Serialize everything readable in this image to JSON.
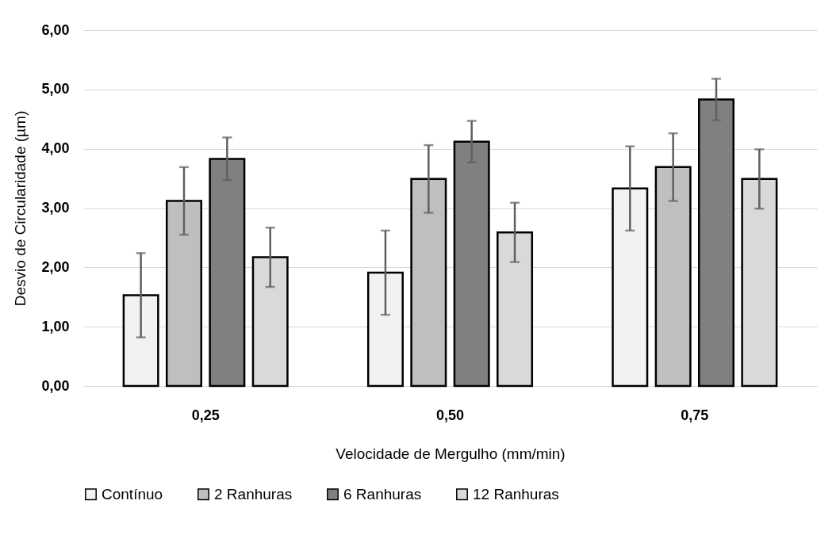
{
  "chart_data": {
    "type": "bar",
    "xlabel": "Velocidade de Mergulho (mm/min)",
    "ylabel": "Desvio de Circularidade (µm)",
    "categories": [
      "0,25",
      "0,50",
      "0,75"
    ],
    "series": [
      {
        "name": "Contínuo",
        "color": "#f2f2f2",
        "values": [
          1.53,
          1.91,
          3.33
        ],
        "errors": [
          0.71,
          0.71,
          0.71
        ]
      },
      {
        "name": "2 Ranhuras",
        "color": "#bfbfbf",
        "values": [
          3.12,
          3.49,
          3.69
        ],
        "errors": [
          0.57,
          0.57,
          0.57
        ]
      },
      {
        "name": "6 Ranhuras",
        "color": "#808080",
        "values": [
          3.83,
          4.12,
          4.83
        ],
        "errors": [
          0.36,
          0.35,
          0.35
        ]
      },
      {
        "name": "12 Ranhuras",
        "color": "#d9d9d9",
        "values": [
          2.17,
          2.59,
          3.49
        ],
        "errors": [
          0.5,
          0.5,
          0.5
        ]
      }
    ],
    "ylim": [
      0,
      6
    ],
    "yticks": [
      {
        "value": 0,
        "label": "0,00"
      },
      {
        "value": 1,
        "label": "1,00"
      },
      {
        "value": 2,
        "label": "2,00"
      },
      {
        "value": 3,
        "label": "3,00"
      },
      {
        "value": 4,
        "label": "4,00"
      },
      {
        "value": 5,
        "label": "5,00"
      },
      {
        "value": 6,
        "label": "6,00"
      }
    ],
    "grid": "y",
    "legend": "bottom"
  }
}
